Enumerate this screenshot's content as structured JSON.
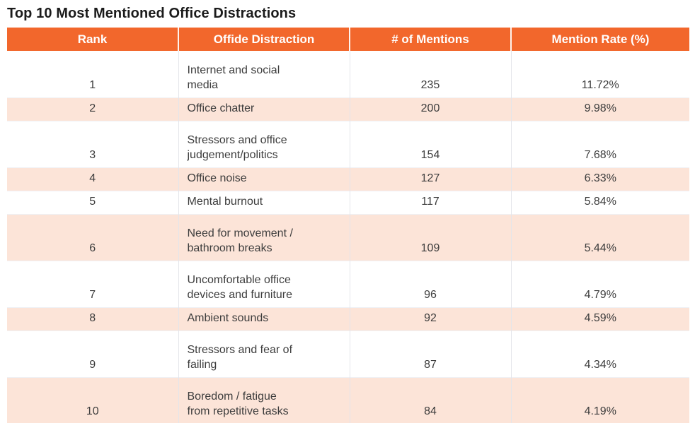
{
  "title": "Top 10 Most Mentioned Office Distractions",
  "colors": {
    "header_bg": "#f2672c",
    "stripe_bg": "#fce4d8",
    "header_text": "#ffffff",
    "body_text": "#3d3d3d",
    "title_text": "#1b1b1b"
  },
  "table": {
    "headers": [
      "Rank",
      "Offide Distraction",
      "# of Mentions",
      "Mention Rate (%)"
    ],
    "rows": [
      {
        "rank": "1",
        "distraction": "Internet and social\nmedia",
        "mentions": "235",
        "rate": "11.72%"
      },
      {
        "rank": "2",
        "distraction": "Office chatter",
        "mentions": "200",
        "rate": "9.98%"
      },
      {
        "rank": "3",
        "distraction": "Stressors and office\njudgement/politics",
        "mentions": "154",
        "rate": "7.68%"
      },
      {
        "rank": "4",
        "distraction": "Office noise",
        "mentions": "127",
        "rate": "6.33%"
      },
      {
        "rank": "5",
        "distraction": "Mental burnout",
        "mentions": "117",
        "rate": "5.84%"
      },
      {
        "rank": "6",
        "distraction": "Need for movement /\nbathroom breaks",
        "mentions": "109",
        "rate": "5.44%"
      },
      {
        "rank": "7",
        "distraction": "Uncomfortable office\ndevices and furniture",
        "mentions": "96",
        "rate": "4.79%"
      },
      {
        "rank": "8",
        "distraction": "Ambient sounds",
        "mentions": "92",
        "rate": "4.59%"
      },
      {
        "rank": "9",
        "distraction": "Stressors and fear of\nfailing",
        "mentions": "87",
        "rate": "4.34%"
      },
      {
        "rank": "10",
        "distraction": "Boredom / fatigue\nfrom repetitive tasks",
        "mentions": "84",
        "rate": "4.19%"
      }
    ]
  },
  "chart_data": {
    "type": "table",
    "title": "Top 10 Most Mentioned Office Distractions",
    "columns": [
      "Rank",
      "Offide Distraction",
      "# of Mentions",
      "Mention Rate (%)"
    ],
    "rows": [
      [
        1,
        "Internet and social media",
        235,
        11.72
      ],
      [
        2,
        "Office chatter",
        200,
        9.98
      ],
      [
        3,
        "Stressors and office judgement/politics",
        154,
        7.68
      ],
      [
        4,
        "Office noise",
        127,
        6.33
      ],
      [
        5,
        "Mental burnout",
        117,
        5.84
      ],
      [
        6,
        "Need for movement / bathroom breaks",
        109,
        5.44
      ],
      [
        7,
        "Uncomfortable office devices and furniture",
        96,
        4.79
      ],
      [
        8,
        "Ambient sounds",
        92,
        4.59
      ],
      [
        9,
        "Stressors and fear of failing",
        87,
        4.34
      ],
      [
        10,
        "Boredom / fatigue from repetitive tasks",
        84,
        4.19
      ]
    ],
    "notes": "Mention Rate shown as percent; header stripe orange with alternating peach rows"
  }
}
